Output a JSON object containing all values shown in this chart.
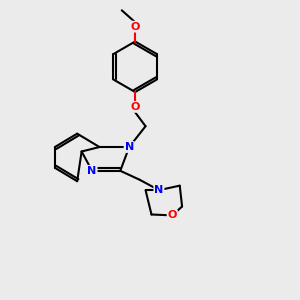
{
  "bg_color": "#ebebeb",
  "bond_color": "#000000",
  "N_color": "#0000ff",
  "O_color": "#ff0000",
  "lw": 1.5,
  "dbo": 0.08,
  "figsize": [
    3.0,
    3.0
  ],
  "dpi": 100,
  "xlim": [
    0,
    10
  ],
  "ylim": [
    0,
    10
  ]
}
